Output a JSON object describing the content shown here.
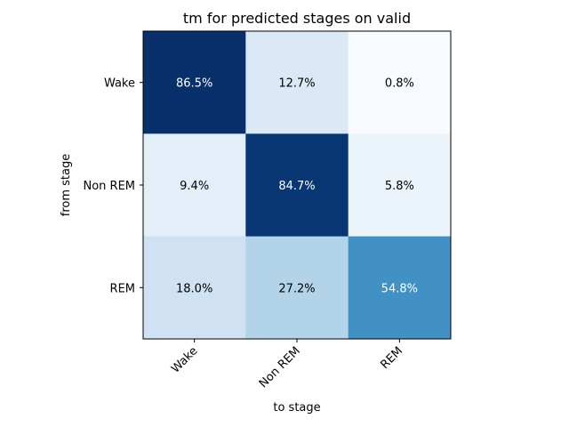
{
  "chart_data": {
    "type": "heatmap",
    "title": "tm for predicted stages on valid",
    "xlabel": "to stage",
    "ylabel": "from stage",
    "x_categories": [
      "Wake",
      "Non REM",
      "REM"
    ],
    "y_categories": [
      "Wake",
      "Non REM",
      "REM"
    ],
    "values": [
      [
        86.5,
        12.7,
        0.8
      ],
      [
        9.4,
        84.7,
        5.8
      ],
      [
        18.0,
        27.2,
        54.8
      ]
    ],
    "cell_labels": [
      [
        "86.5%",
        "12.7%",
        "0.8%"
      ],
      [
        "9.4%",
        "84.7%",
        "5.8%"
      ],
      [
        "18.0%",
        "27.2%",
        "54.8%"
      ]
    ],
    "colormap": "Blues",
    "colors": {
      "low": "#f7fbff",
      "high": "#08306b",
      "text_dark": "#000000",
      "text_light": "#ffffff"
    }
  }
}
